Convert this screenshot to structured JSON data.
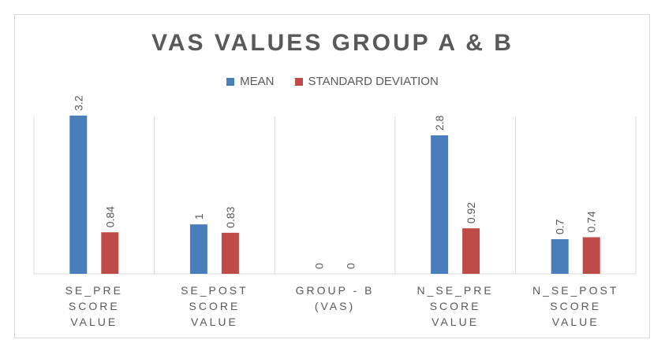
{
  "chart_data": {
    "type": "bar",
    "title": "VAS VALUES GROUP A & B",
    "categories": [
      [
        "SE_PRE",
        "SCORE",
        "VALUE"
      ],
      [
        "SE_POST",
        "SCORE",
        "VALUE"
      ],
      [
        "GROUP - B",
        "(VAS)"
      ],
      [
        "N_SE_PRE",
        "SCORE",
        "VALUE"
      ],
      [
        "N_SE_POST",
        "SCORE",
        "VALUE"
      ]
    ],
    "series": [
      {
        "name": "MEAN",
        "color": "#4a7ebb",
        "values": [
          3.2,
          1,
          0,
          2.8,
          0.7
        ],
        "labels": [
          "3.2",
          "1",
          "0",
          "2.8",
          "0.7"
        ]
      },
      {
        "name": "STANDARD DEVIATION",
        "color": "#be4b48",
        "values": [
          0.84,
          0.83,
          0,
          0.92,
          0.74
        ],
        "labels": [
          "0.84",
          "0.83",
          "0",
          "0.92",
          "0.74"
        ]
      }
    ],
    "ylim": [
      0,
      3.5
    ],
    "legend_position": "top",
    "grid": "vertical-separators"
  }
}
